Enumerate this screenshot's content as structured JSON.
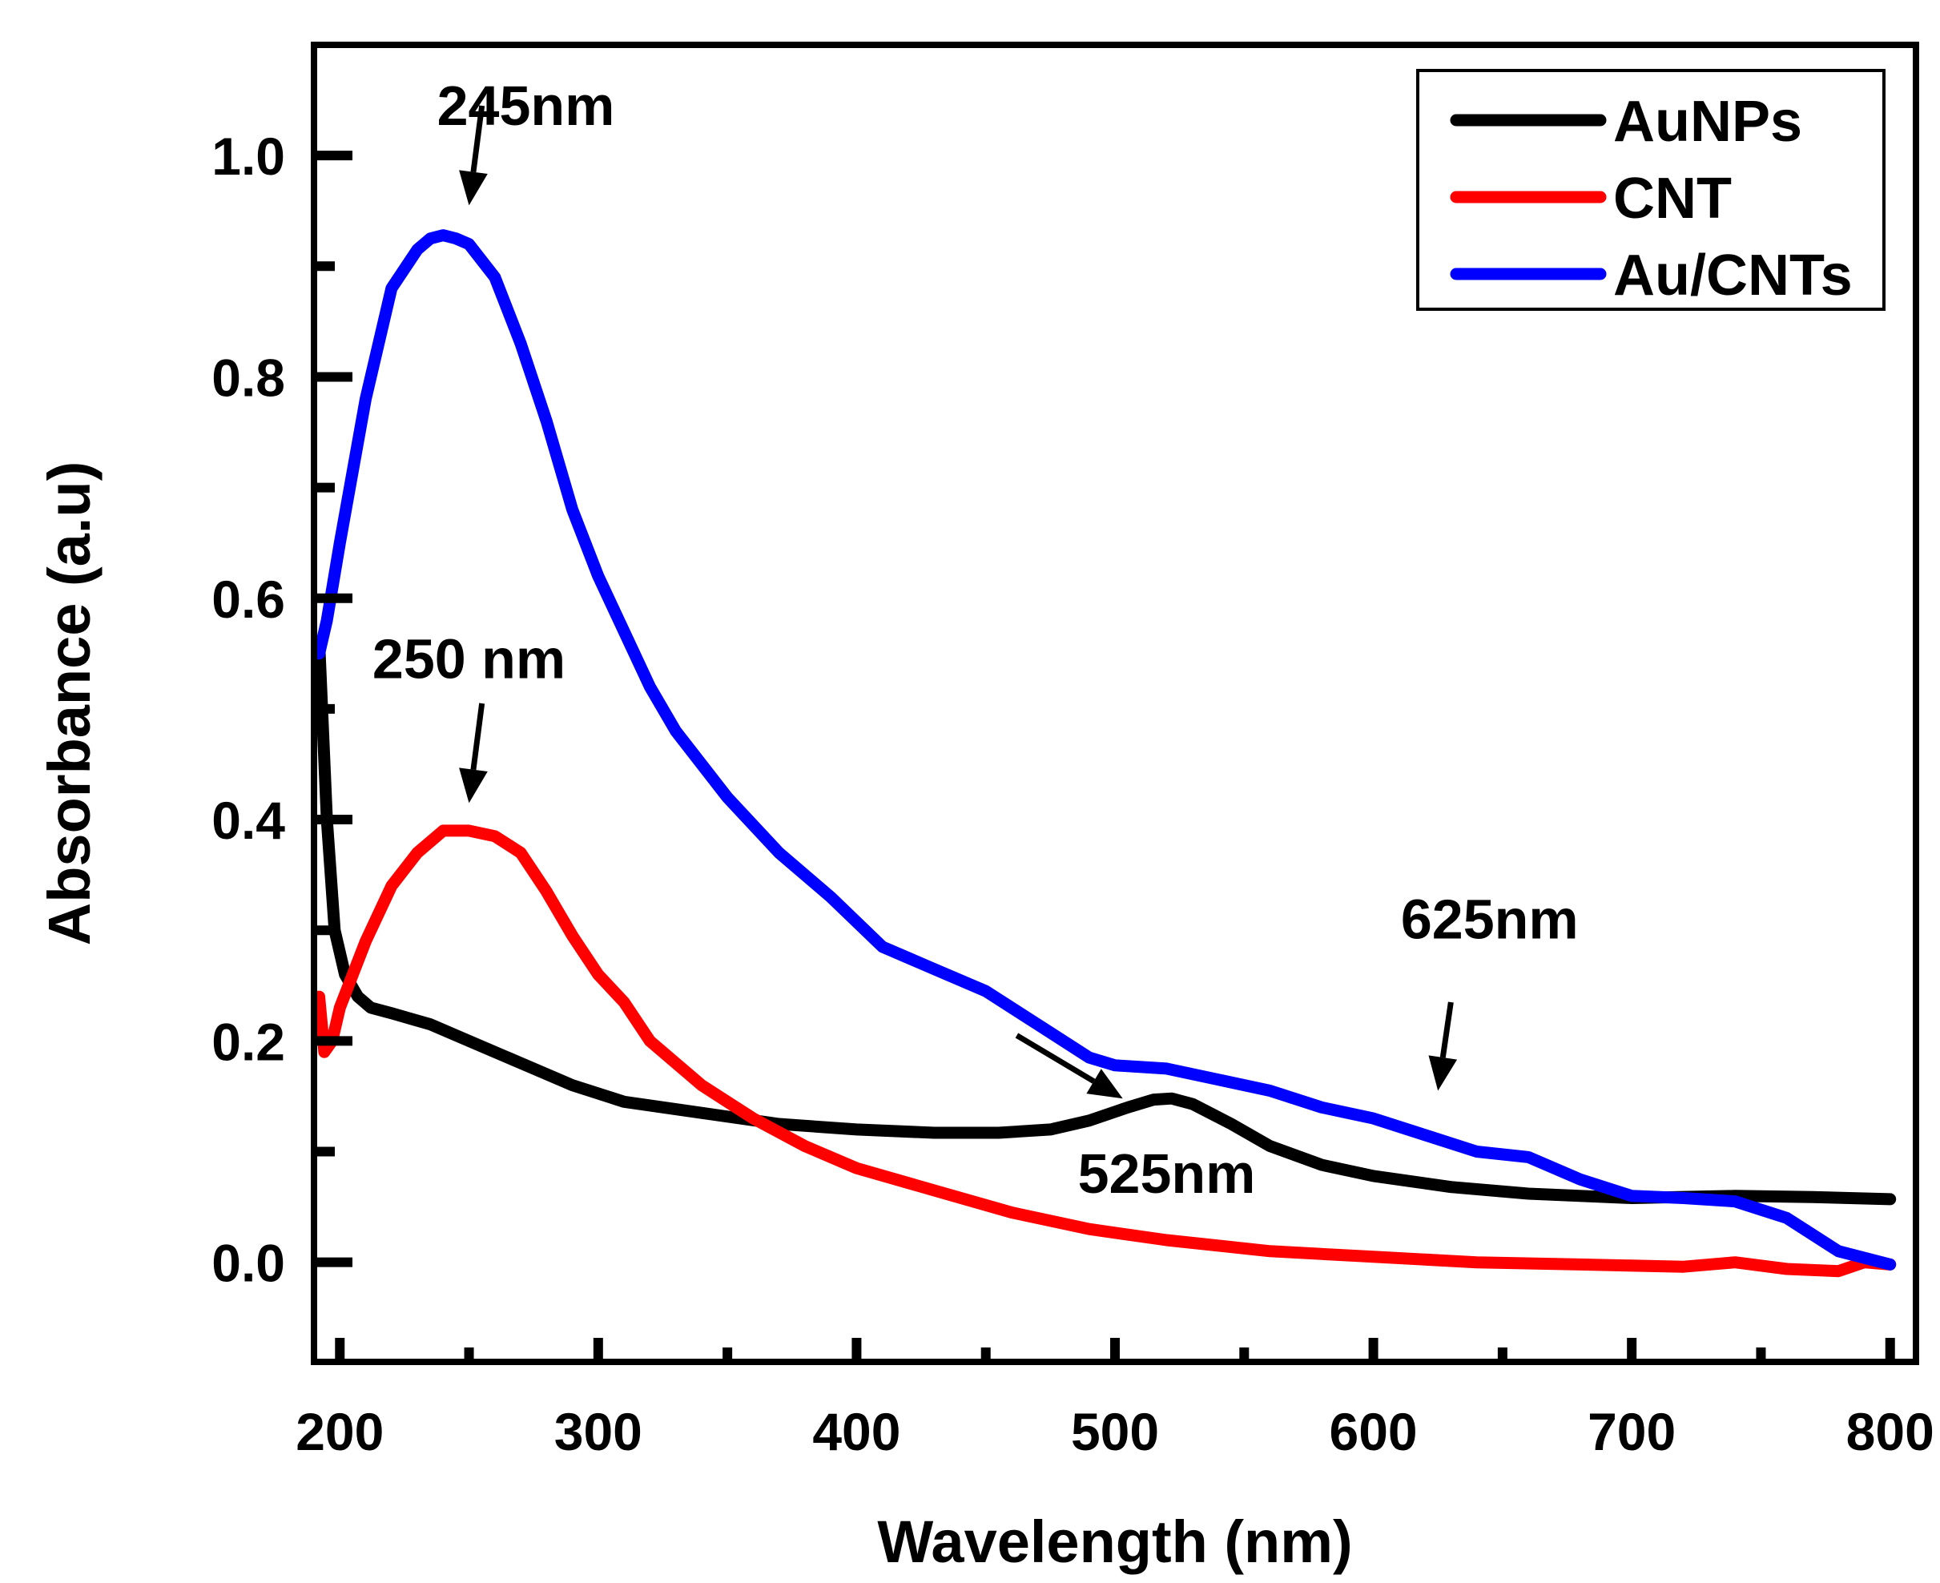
{
  "chart_data": {
    "type": "line",
    "title": "",
    "xlabel": "Wavelength (nm)",
    "ylabel": "Absorbance (a.u)",
    "xlim": [
      190,
      810
    ],
    "ylim": [
      -0.09,
      1.1
    ],
    "xticks": [
      200,
      300,
      400,
      500,
      600,
      700,
      800
    ],
    "xtick_labels": [
      "200",
      "300",
      "400",
      "500",
      "600",
      "700",
      "800"
    ],
    "yticks": [
      0.0,
      0.2,
      0.4,
      0.6,
      0.8,
      1.0
    ],
    "ytick_labels": [
      "0.0",
      "0.2",
      "0.4",
      "0.6",
      "0.8",
      "1.0"
    ],
    "grid": false,
    "legend_position": "top-right",
    "series": [
      {
        "name": "AuNPs",
        "color": "#000000",
        "x": [
          192,
          195,
          198,
          202,
          207,
          212,
          220,
          235,
          250,
          270,
          290,
          310,
          340,
          370,
          400,
          430,
          455,
          475,
          490,
          505,
          515,
          522,
          530,
          545,
          560,
          580,
          600,
          630,
          660,
          700,
          740,
          770,
          800
        ],
        "y": [
          0.56,
          0.4,
          0.3,
          0.26,
          0.24,
          0.23,
          0.225,
          0.215,
          0.2,
          0.18,
          0.16,
          0.145,
          0.135,
          0.125,
          0.12,
          0.117,
          0.117,
          0.12,
          0.128,
          0.14,
          0.147,
          0.148,
          0.143,
          0.125,
          0.105,
          0.088,
          0.078,
          0.068,
          0.062,
          0.058,
          0.06,
          0.059,
          0.057
        ]
      },
      {
        "name": "CNT",
        "color": "#ff0000",
        "x": [
          192,
          194,
          197,
          200,
          210,
          220,
          230,
          240,
          250,
          260,
          270,
          280,
          290,
          300,
          310,
          320,
          340,
          360,
          380,
          400,
          430,
          460,
          490,
          520,
          560,
          600,
          640,
          680,
          720,
          740,
          760,
          780,
          790,
          800
        ],
        "y": [
          0.24,
          0.19,
          0.2,
          0.23,
          0.29,
          0.34,
          0.37,
          0.39,
          0.39,
          0.385,
          0.37,
          0.335,
          0.295,
          0.26,
          0.235,
          0.2,
          0.16,
          0.13,
          0.105,
          0.085,
          0.065,
          0.045,
          0.03,
          0.02,
          0.01,
          0.005,
          0.0,
          -0.002,
          -0.004,
          0.0,
          -0.006,
          -0.008,
          0.0,
          -0.002
        ]
      },
      {
        "name": "Au/CNTs",
        "color": "#0000ff",
        "x": [
          192,
          195,
          200,
          210,
          220,
          230,
          235,
          240,
          245,
          250,
          260,
          270,
          280,
          290,
          300,
          310,
          320,
          330,
          350,
          370,
          390,
          410,
          430,
          450,
          470,
          490,
          500,
          520,
          540,
          560,
          580,
          600,
          620,
          640,
          660,
          680,
          700,
          720,
          740,
          760,
          780,
          800
        ],
        "y": [
          0.55,
          0.58,
          0.65,
          0.78,
          0.88,
          0.915,
          0.925,
          0.928,
          0.925,
          0.92,
          0.89,
          0.83,
          0.76,
          0.68,
          0.62,
          0.57,
          0.52,
          0.48,
          0.42,
          0.37,
          0.33,
          0.285,
          0.265,
          0.245,
          0.215,
          0.185,
          0.178,
          0.175,
          0.165,
          0.155,
          0.14,
          0.13,
          0.115,
          0.1,
          0.095,
          0.075,
          0.06,
          0.058,
          0.055,
          0.04,
          0.01,
          -0.002
        ]
      }
    ],
    "annotations": [
      {
        "text": "245nm",
        "text_x": 272,
        "text_y": 1.045,
        "arrow_from": [
          255,
          1.045
        ],
        "arrow_to": [
          250,
          0.955
        ]
      },
      {
        "text": "250 nm",
        "text_x": 250,
        "text_y": 0.545,
        "arrow_from": [
          255,
          0.505
        ],
        "arrow_to": [
          250,
          0.415
        ]
      },
      {
        "text": "525nm",
        "text_x": 520,
        "text_y": 0.08,
        "arrow_from": [
          462,
          0.205
        ],
        "arrow_to": [
          503,
          0.148
        ]
      },
      {
        "text": "625nm",
        "text_x": 645,
        "text_y": 0.31,
        "arrow_from": [
          630,
          0.235
        ],
        "arrow_to": [
          625,
          0.155
        ]
      }
    ]
  }
}
